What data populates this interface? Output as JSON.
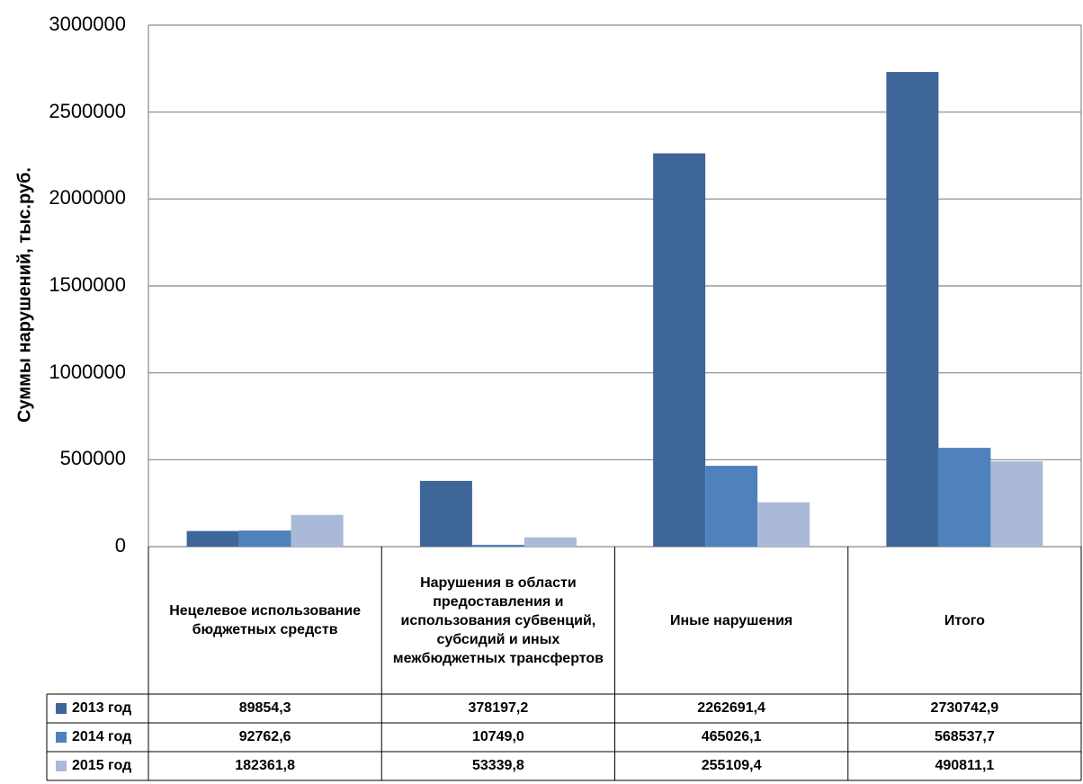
{
  "chart_data": {
    "type": "bar",
    "ylabel": "Суммы нарушений, тыс.руб.",
    "ylim": [
      0,
      3000000
    ],
    "yticks": [
      "0",
      "500000",
      "1000000",
      "1500000",
      "2000000",
      "2500000",
      "3000000"
    ],
    "grid": true,
    "legend": "data-table",
    "categories": [
      "Нецелевое использование бюджетных средств",
      "Нарушения в области предоставления и использования субвенций, субсидий и иных межбюджетных трансфертов",
      "Иные нарушения",
      "Итого"
    ],
    "series": [
      {
        "name": "2013 год",
        "color": "#3e6699",
        "values": [
          89854.3,
          378197.2,
          2262691.4,
          2730742.9
        ],
        "labels": [
          "89854,3",
          "378197,2",
          "2262691,4",
          "2730742,9"
        ]
      },
      {
        "name": "2014 год",
        "color": "#4f81bd",
        "values": [
          92762.6,
          10749.0,
          465026.1,
          568537.7
        ],
        "labels": [
          "92762,6",
          "10749,0",
          "465026,1",
          "568537,7"
        ]
      },
      {
        "name": "2015 год",
        "color": "#aab9d8",
        "values": [
          182361.8,
          53339.8,
          255109.4,
          490811.1
        ],
        "labels": [
          "182361,8",
          "53339,8",
          "255109,4",
          "490811,1"
        ]
      }
    ]
  }
}
